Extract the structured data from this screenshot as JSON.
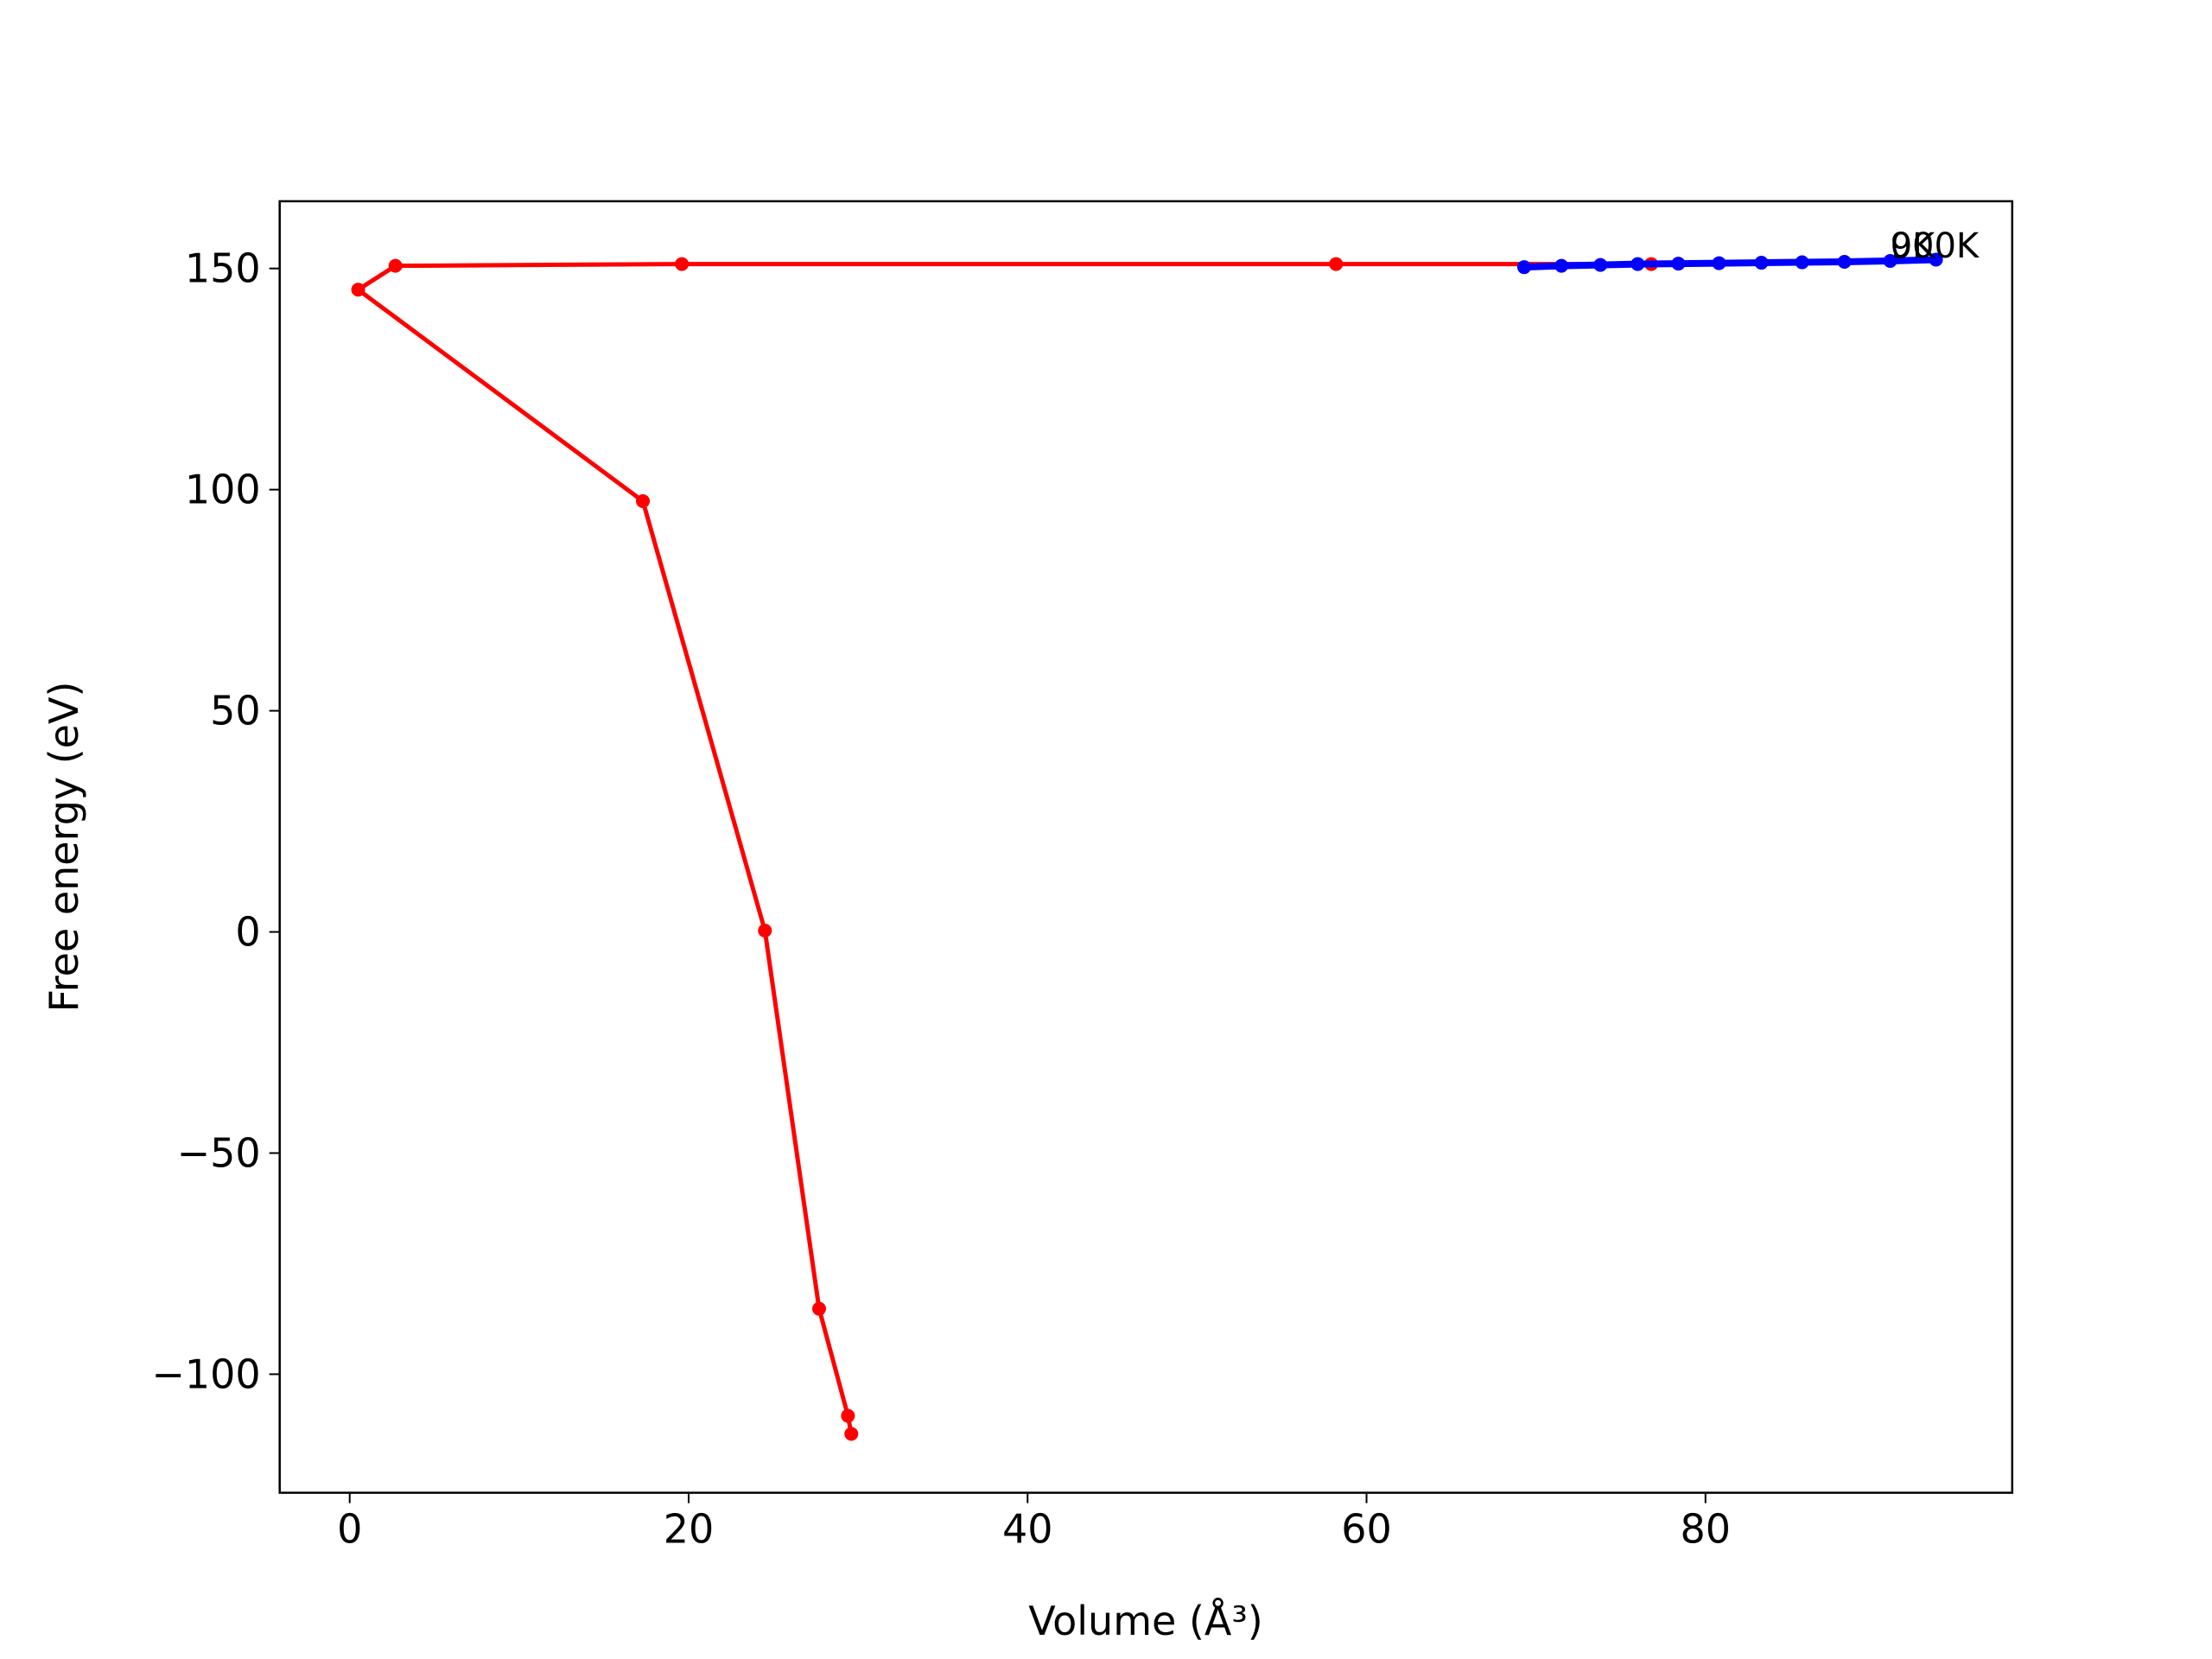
{
  "chart_data": {
    "type": "line",
    "xlabel": "Volume (Å³)",
    "ylabel": "Free energy (eV)",
    "series": [
      {
        "name": "red",
        "color": "#ff0000",
        "linewidth": 5,
        "x": [
          76.8,
          58.2,
          19.6,
          2.7,
          0.5,
          17.3,
          24.5,
          27.7,
          29.4,
          29.6
        ],
        "values": [
          151,
          151,
          151,
          150.6,
          145.2,
          97.4,
          0.3,
          -85.2,
          -109.4,
          -113.5
        ]
      },
      {
        "name": "blue",
        "color": "#0000ff",
        "linewidth": 8,
        "x": [
          69.3,
          71.5,
          73.8,
          76.0,
          78.4,
          80.8,
          83.3,
          85.7,
          88.2,
          90.9,
          93.6
        ],
        "values": [
          150.3,
          150.6,
          150.8,
          151.0,
          151.1,
          151.2,
          151.3,
          151.4,
          151.5,
          151.7,
          152.0
        ]
      }
    ],
    "annotations": [
      {
        "text": "0K",
        "x": 90.9,
        "y": 151.7
      },
      {
        "text": "900K",
        "x": 90.9,
        "y": 151.7
      }
    ],
    "xlim": [
      -4.13,
      98.1
    ],
    "ylim": [
      -126.8,
      165.2
    ],
    "xticks": [
      0,
      20,
      40,
      60,
      80
    ],
    "yticks": [
      {
        "value": -100,
        "label": "−100"
      },
      {
        "value": -50,
        "label": "−50"
      },
      0,
      50,
      100,
      150
    ]
  }
}
